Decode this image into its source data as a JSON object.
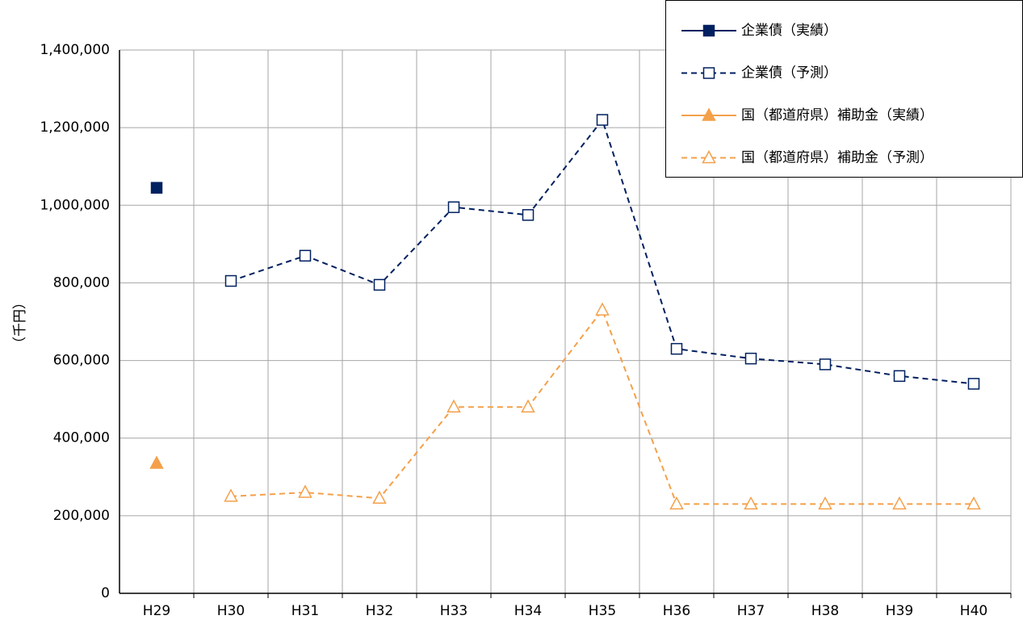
{
  "chart_data": {
    "type": "line",
    "y_label": "（千円）",
    "categories": [
      "H29",
      "H30",
      "H31",
      "H32",
      "H33",
      "H34",
      "H35",
      "H36",
      "H37",
      "H38",
      "H39",
      "H40"
    ],
    "series": [
      {
        "name": "企業債（実績）",
        "color": "#002060",
        "marker": "square",
        "filled": true,
        "dashed": false,
        "values": [
          1045000,
          null,
          null,
          null,
          null,
          null,
          null,
          null,
          null,
          null,
          null,
          null
        ]
      },
      {
        "name": "企業債（予測）",
        "color": "#002060",
        "marker": "square",
        "filled": false,
        "dashed": true,
        "values": [
          null,
          805000,
          870000,
          795000,
          995000,
          975000,
          1220000,
          630000,
          605000,
          590000,
          560000,
          540000
        ]
      },
      {
        "name": "国（都道府県）補助金（実績）",
        "color": "#f4a04a",
        "marker": "triangle",
        "filled": true,
        "dashed": false,
        "values": [
          335000,
          null,
          null,
          null,
          null,
          null,
          null,
          null,
          null,
          null,
          null,
          null
        ]
      },
      {
        "name": "国（都道府県）補助金（予測）",
        "color": "#f4a04a",
        "marker": "triangle",
        "filled": false,
        "dashed": true,
        "values": [
          null,
          250000,
          260000,
          245000,
          480000,
          480000,
          730000,
          230000,
          230000,
          230000,
          230000,
          230000
        ]
      }
    ],
    "ylim": [
      0,
      1400000
    ],
    "yticks": [
      0,
      {
        "value": 200000,
        "label": "200,000"
      },
      {
        "value": 400000,
        "label": "400,000"
      },
      {
        "value": 600000,
        "label": "600,000"
      },
      {
        "value": 800000,
        "label": "800,000"
      },
      {
        "value": 1000000,
        "label": "1,000,000"
      },
      {
        "value": 1200000,
        "label": "1,200,000"
      },
      {
        "value": 1400000,
        "label": "1,400,000"
      }
    ],
    "grid": true,
    "legend": "top-right"
  }
}
